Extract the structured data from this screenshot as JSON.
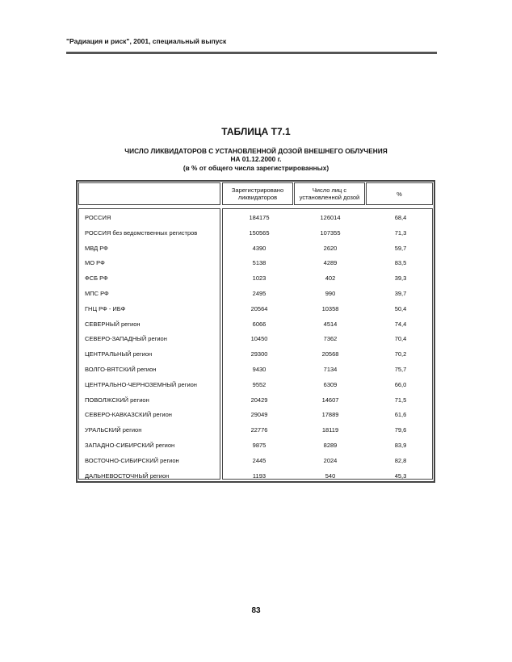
{
  "running_header": "\"Радиация и риск\", 2001, специальный выпуск",
  "table_title": "ТАБЛИЦА Т7.1",
  "subtitle_lines": [
    "ЧИСЛО ЛИКВИДАТОРОВ С УСТАНОВЛЕННОЙ ДОЗОЙ ВНЕШНЕГО ОБЛУЧЕНИЯ",
    "НА 01.12.2000 г.",
    "(в % от общего числа зарегистрированных)"
  ],
  "columns": [
    "",
    "Зарегистрировано ликвидаторов",
    "Число лиц с установленной дозой",
    "%"
  ],
  "rows": [
    [
      "РОССИЯ",
      "184175",
      "126014",
      "68,4"
    ],
    [
      "РОССИЯ без ведомственных регистров",
      "150565",
      "107355",
      "71,3"
    ],
    [
      "МВД РФ",
      "4390",
      "2620",
      "59,7"
    ],
    [
      "МО РФ",
      "5138",
      "4289",
      "83,5"
    ],
    [
      "ФСБ РФ",
      "1023",
      "402",
      "39,3"
    ],
    [
      "МПС РФ",
      "2495",
      "990",
      "39,7"
    ],
    [
      "ГНЦ РФ - ИБФ",
      "20564",
      "10358",
      "50,4"
    ],
    [
      "СЕВЕРНЫЙ регион",
      "6066",
      "4514",
      "74,4"
    ],
    [
      "СЕВЕРО-ЗАПАДНЫЙ регион",
      "10450",
      "7362",
      "70,4"
    ],
    [
      "ЦЕНТРАЛЬНЫЙ регион",
      "29300",
      "20568",
      "70,2"
    ],
    [
      "ВОЛГО-ВЯТСКИЙ регион",
      "9430",
      "7134",
      "75,7"
    ],
    [
      "ЦЕНТРАЛЬНО-ЧЕРНОЗЕМНЫЙ регион",
      "9552",
      "6309",
      "66,0"
    ],
    [
      "ПОВОЛЖСКИЙ регион",
      "20429",
      "14607",
      "71,5"
    ],
    [
      "СЕВЕРО-КАВКАЗСКИЙ регион",
      "29049",
      "17889",
      "61,6"
    ],
    [
      "УРАЛЬСКИЙ регион",
      "22776",
      "18119",
      "79,6"
    ],
    [
      "ЗАПАДНО-СИБИРСКИЙ регион",
      "9875",
      "8289",
      "83,9"
    ],
    [
      "ВОСТОЧНО-СИБИРСКИЙ регион",
      "2445",
      "2024",
      "82,8"
    ],
    [
      "ДАЛЬНЕВОСТОЧНЫЙ регион",
      "1193",
      "540",
      "45,3"
    ]
  ],
  "page_number": "83"
}
